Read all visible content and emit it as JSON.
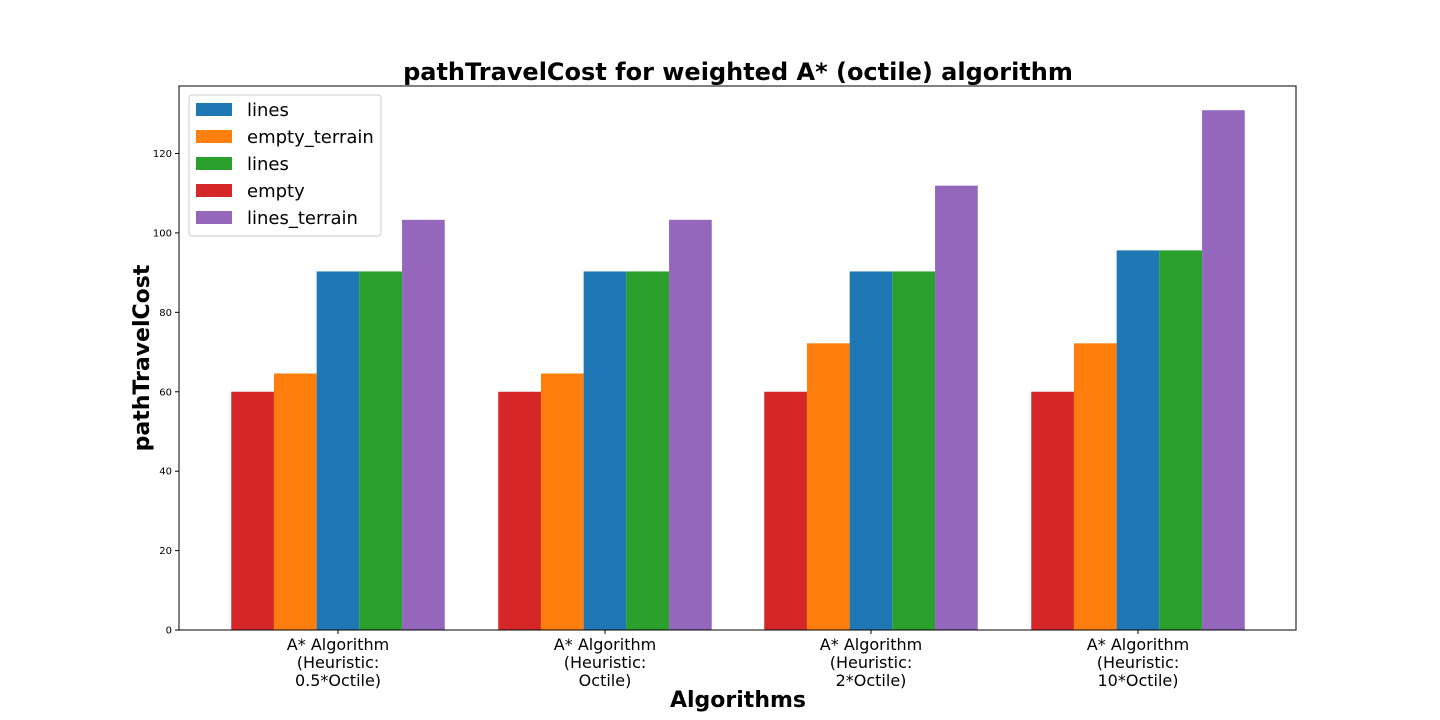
{
  "chart_data": {
    "type": "bar",
    "title": "pathTravelCost for weighted A* (octile) algorithm",
    "xlabel": "Algorithms",
    "ylabel": "pathTravelCost",
    "ylim": [
      0,
      137
    ],
    "yticks": [
      0,
      20,
      40,
      60,
      80,
      100,
      120
    ],
    "categories": [
      [
        "A* Algorithm",
        "(Heuristic:",
        "0.5*Octile)"
      ],
      [
        "A* Algorithm",
        "(Heuristic:",
        "Octile)"
      ],
      [
        "A* Algorithm",
        "(Heuristic:",
        "2*Octile)"
      ],
      [
        "A* Algorithm",
        "(Heuristic:",
        "10*Octile)"
      ]
    ],
    "series": [
      {
        "name": "empty",
        "color": "#d62728",
        "values": [
          60,
          60,
          60,
          60
        ]
      },
      {
        "name": "empty_terrain",
        "color": "#ff7f0e",
        "values": [
          64.6,
          64.6,
          72.2,
          72.2
        ]
      },
      {
        "name": "lines",
        "color": "#1f77b4",
        "values": [
          90.3,
          90.3,
          90.3,
          95.6
        ]
      },
      {
        "name": "lines",
        "color": "#2ca02c",
        "values": [
          90.3,
          90.3,
          90.3,
          95.6
        ]
      },
      {
        "name": "lines_terrain",
        "color": "#9467bd",
        "values": [
          103.3,
          103.3,
          111.9,
          130.9
        ]
      }
    ],
    "legend": {
      "placement": "top-left",
      "order": [
        2,
        1,
        3,
        0,
        4
      ]
    },
    "grid": false
  }
}
